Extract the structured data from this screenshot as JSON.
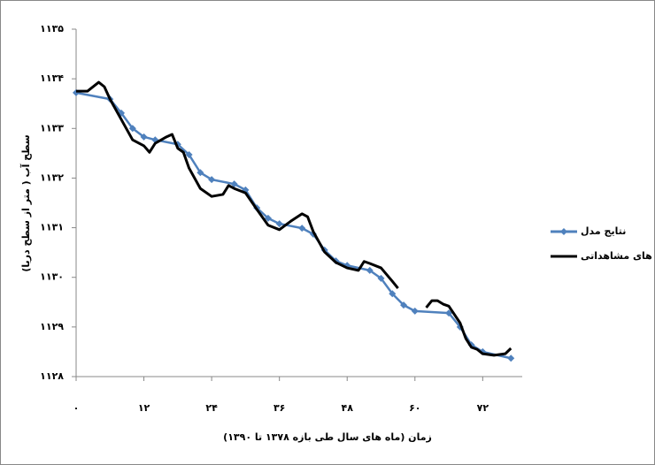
{
  "chart_data": {
    "type": "line",
    "x_label": "زمان (ماه های سال طی بازه ۱۳۷۸ تا ۱۳۹۰)",
    "y_label": "سطح آب ( متر از سطح دریا)",
    "xlim": [
      0,
      79
    ],
    "ylim": [
      1128,
      1135
    ],
    "xticks": [
      {
        "value": 0,
        "label": "۰"
      },
      {
        "value": 12,
        "label": "۱۲"
      },
      {
        "value": 24,
        "label": "۲۴"
      },
      {
        "value": 36,
        "label": "۳۶"
      },
      {
        "value": 48,
        "label": "۴۸"
      },
      {
        "value": 60,
        "label": "۶۰"
      },
      {
        "value": 72,
        "label": "۷۲"
      }
    ],
    "yticks": [
      {
        "value": 1128,
        "label": "۱۱۲۸"
      },
      {
        "value": 1129,
        "label": "۱۱۲۹"
      },
      {
        "value": 1130,
        "label": "۱۱۳۰"
      },
      {
        "value": 1131,
        "label": "۱۱۳۱"
      },
      {
        "value": 1132,
        "label": "۱۱۳۲"
      },
      {
        "value": 1133,
        "label": "۱۱۳۳"
      },
      {
        "value": 1134,
        "label": "۱۱۳۴"
      },
      {
        "value": 1135,
        "label": "۱۱۳۵"
      }
    ],
    "series": [
      {
        "name": "نتایج مدل",
        "color": "#4f81bd",
        "marker": "diamond",
        "x": [
          0,
          6,
          8,
          10,
          12,
          14,
          18,
          20,
          22,
          24,
          28,
          30,
          32,
          34,
          36,
          40,
          42,
          44,
          46,
          48,
          52,
          54,
          56,
          58,
          60,
          66,
          68,
          70,
          72,
          77
        ],
        "values": [
          1133.72,
          1133.59,
          1133.31,
          1133.0,
          1132.83,
          1132.77,
          1132.68,
          1132.47,
          1132.11,
          1131.97,
          1131.88,
          1131.76,
          1131.4,
          1131.19,
          1131.08,
          1130.99,
          1130.87,
          1130.55,
          1130.33,
          1130.24,
          1130.14,
          1129.98,
          1129.67,
          1129.44,
          1129.32,
          1129.28,
          1129.0,
          1128.64,
          1128.5,
          1128.37
        ]
      },
      {
        "name": "داده های مشاهداتی",
        "color": "#000000",
        "x": [
          0,
          2,
          4,
          5,
          6,
          8,
          10,
          12,
          13,
          14,
          16,
          17,
          18,
          19,
          20,
          22,
          24,
          26,
          27,
          28,
          30,
          32,
          34,
          36,
          38,
          40,
          41,
          42,
          44,
          46,
          48,
          50,
          51,
          52,
          54,
          56,
          57,
          60,
          62,
          63,
          64,
          65,
          66,
          68,
          69,
          70,
          71,
          72,
          74,
          76,
          77
        ],
        "values": [
          1133.75,
          1133.75,
          1133.93,
          1133.84,
          1133.59,
          1133.18,
          1132.77,
          1132.65,
          1132.52,
          1132.7,
          1132.83,
          1132.88,
          1132.6,
          1132.52,
          1132.2,
          1131.79,
          1131.63,
          1131.67,
          1131.85,
          1131.79,
          1131.7,
          1131.37,
          1131.05,
          1130.96,
          1131.13,
          1131.28,
          1131.22,
          1130.92,
          1130.51,
          1130.3,
          1130.19,
          1130.14,
          1130.32,
          1130.28,
          1130.19,
          1129.92,
          1129.78,
          null,
          1129.39,
          1129.53,
          1129.53,
          1129.46,
          1129.42,
          1129.08,
          1128.77,
          1128.59,
          1128.55,
          1128.46,
          1128.43,
          1128.46,
          1128.57
        ]
      }
    ]
  }
}
